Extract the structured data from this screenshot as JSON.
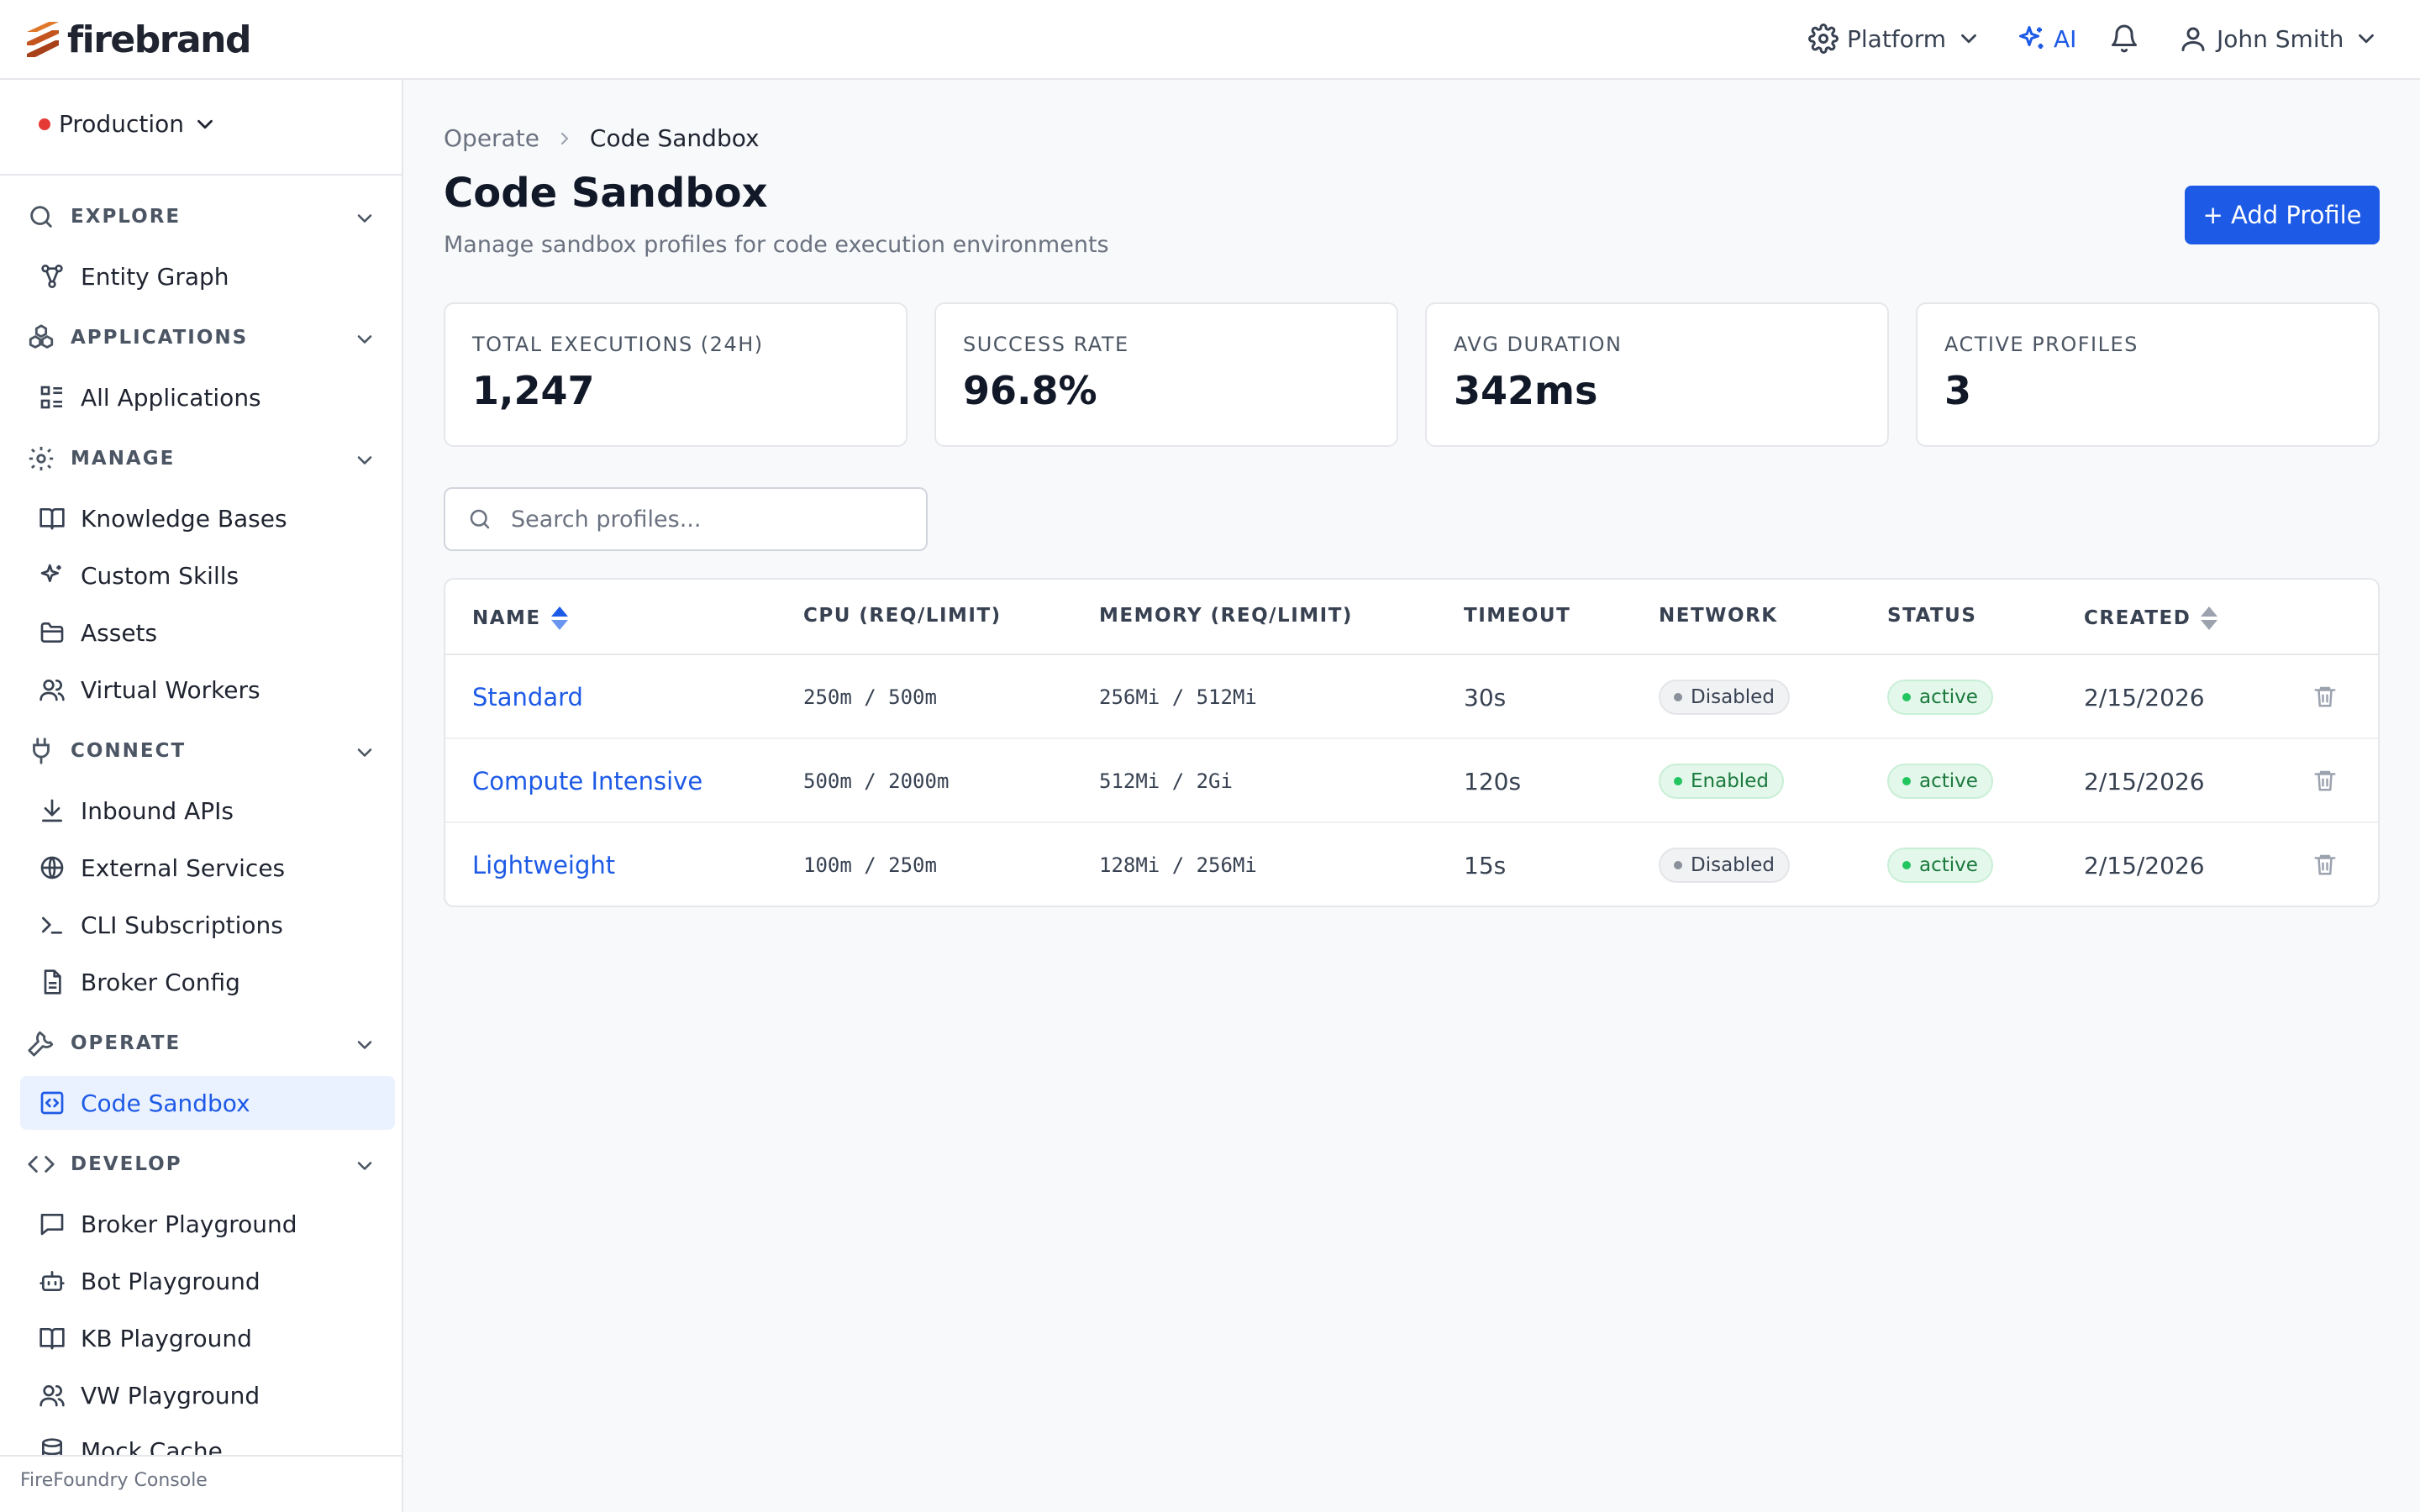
{
  "app": {
    "logo_text": "firebrand",
    "footer": "FireFoundry Console"
  },
  "topbar": {
    "platform_label": "Platform",
    "ai_label": "AI",
    "user_name": "John Smith"
  },
  "sidebar": {
    "environment": "Production",
    "sections": {
      "explore": "EXPLORE",
      "applications": "APPLICATIONS",
      "manage": "MANAGE",
      "connect": "CONNECT",
      "operate": "OPERATE",
      "develop": "DEVELOP"
    },
    "items": {
      "entity_graph": "Entity Graph",
      "all_applications": "All Applications",
      "knowledge_bases": "Knowledge Bases",
      "custom_skills": "Custom Skills",
      "assets": "Assets",
      "virtual_workers": "Virtual Workers",
      "inbound_apis": "Inbound APIs",
      "external_services": "External Services",
      "cli_subscriptions": "CLI Subscriptions",
      "broker_config": "Broker Config",
      "code_sandbox": "Code Sandbox",
      "broker_playground": "Broker Playground",
      "bot_playground": "Bot Playground",
      "kb_playground": "KB Playground",
      "vw_playground": "VW Playground",
      "mock_cache": "Mock Cache"
    }
  },
  "breadcrumb": {
    "parent": "Operate",
    "current": "Code Sandbox"
  },
  "page": {
    "title": "Code Sandbox",
    "subtitle": "Manage sandbox profiles for code execution environments",
    "add_button": "+ Add Profile"
  },
  "stats": [
    {
      "label": "TOTAL EXECUTIONS (24H)",
      "value": "1,247"
    },
    {
      "label": "SUCCESS RATE",
      "value": "96.8%"
    },
    {
      "label": "AVG DURATION",
      "value": "342ms"
    },
    {
      "label": "ACTIVE PROFILES",
      "value": "3"
    }
  ],
  "search": {
    "placeholder": "Search profiles..."
  },
  "table": {
    "columns": {
      "name": "NAME",
      "cpu": "CPU (REQ/LIMIT)",
      "memory": "MEMORY (REQ/LIMIT)",
      "timeout": "TIMEOUT",
      "network": "NETWORK",
      "status": "STATUS",
      "created": "CREATED"
    },
    "rows": [
      {
        "name": "Standard",
        "cpu": "250m / 500m",
        "memory": "256Mi / 512Mi",
        "timeout": "30s",
        "network": "Disabled",
        "status": "active",
        "created": "2/15/2026"
      },
      {
        "name": "Compute Intensive",
        "cpu": "500m / 2000m",
        "memory": "512Mi / 2Gi",
        "timeout": "120s",
        "network": "Enabled",
        "status": "active",
        "created": "2/15/2026"
      },
      {
        "name": "Lightweight",
        "cpu": "100m / 250m",
        "memory": "128Mi / 256Mi",
        "timeout": "15s",
        "network": "Disabled",
        "status": "active",
        "created": "2/15/2026"
      }
    ]
  },
  "colors": {
    "accent": "#1d5ae6",
    "brand": "#c4541d",
    "success": "#22c55e",
    "env_dot": "#e53935"
  },
  "icons": {
    "explore": "search-icon",
    "applications": "cubes-icon",
    "manage": "gear-icon",
    "connect": "plug-icon",
    "operate": "wrench-icon",
    "develop": "code-icon",
    "row_action": "trash-icon"
  }
}
